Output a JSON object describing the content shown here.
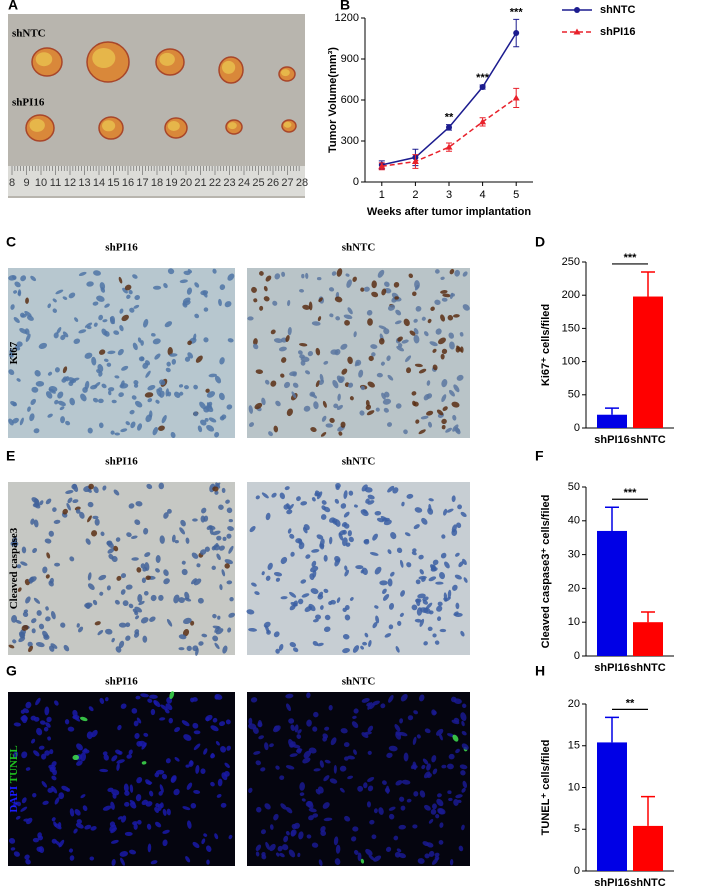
{
  "photo": {
    "panel": "A",
    "labels": [
      "shNTC",
      "shPI16"
    ],
    "ruler_labels": [
      "8",
      "9",
      "10",
      "11",
      "12",
      "13",
      "14",
      "15",
      "16",
      "17",
      "18",
      "19",
      "20",
      "21",
      "22",
      "23",
      "24",
      "25",
      "26",
      "27",
      "28"
    ]
  },
  "images": [
    {
      "panel": "C",
      "row_label": [
        {
          "text": "Ki67",
          "color": "#000000"
        }
      ],
      "labels": [
        "shPI16",
        "shNTC"
      ]
    },
    {
      "panel": "E",
      "row_label": [
        {
          "text": "Cleaved caspase3",
          "color": "#000000"
        }
      ],
      "labels": [
        "shPI16",
        "shNTC"
      ]
    },
    {
      "panel": "G",
      "row_label": [
        {
          "text": "DAPI",
          "color": "#1a1aff"
        },
        {
          "text": "TUNEL",
          "color": "#1fbf1f"
        }
      ],
      "labels": [
        "shPI16",
        "shNTC"
      ]
    }
  ],
  "chart_data": [
    {
      "type": "line",
      "panel": "B",
      "x": [
        1,
        2,
        3,
        4,
        5
      ],
      "xlim": [
        0.5,
        5.5
      ],
      "xticks": [
        1,
        2,
        3,
        4,
        5
      ],
      "ylim": [
        0,
        1200
      ],
      "yticks": [
        0,
        300,
        600,
        900,
        1200
      ],
      "x_label": "Weeks after tumor implantation",
      "y_label": "Tumor Volume(mm³)",
      "series": [
        {
          "name": "shNTC",
          "color": "#1c1c8f",
          "dash": false,
          "values": [
            125,
            180,
            400,
            695,
            1090
          ],
          "errors": [
            30,
            60,
            20,
            15,
            100
          ]
        },
        {
          "name": "shPI16",
          "color": "#e8212b",
          "dash": true,
          "values": [
            115,
            150,
            255,
            440,
            615
          ],
          "errors": [
            25,
            50,
            30,
            30,
            70
          ]
        }
      ],
      "annotations": [
        {
          "x": 3,
          "text": "**"
        },
        {
          "x": 4,
          "text": "***"
        },
        {
          "x": 5,
          "text": "***"
        }
      ],
      "legend": "top-right"
    },
    {
      "type": "bar",
      "panel": "D",
      "categories": [
        "shPI16",
        "shNTC"
      ],
      "values": [
        20,
        198
      ],
      "errors": [
        10,
        37
      ],
      "colors": [
        "#0000e6",
        "#ff0000"
      ],
      "ylim": [
        0,
        250
      ],
      "yticks": [
        0,
        50,
        100,
        150,
        200,
        250
      ],
      "y_label": "Ki67⁺ cells/filed",
      "significance": "***"
    },
    {
      "type": "bar",
      "panel": "F",
      "categories": [
        "shPI16",
        "shNTC"
      ],
      "values": [
        37,
        10
      ],
      "errors": [
        7,
        3
      ],
      "colors": [
        "#0000e6",
        "#ff0000"
      ],
      "ylim": [
        0,
        50
      ],
      "yticks": [
        0,
        10,
        20,
        30,
        40,
        50
      ],
      "y_label": "Cleaved caspase3⁺ cells/filed",
      "significance": "***"
    },
    {
      "type": "bar",
      "panel": "H",
      "categories": [
        "shPI16",
        "shNTC"
      ],
      "values": [
        15.4,
        5.4
      ],
      "errors": [
        3,
        3.5
      ],
      "colors": [
        "#0000e6",
        "#ff0000"
      ],
      "ylim": [
        0,
        20
      ],
      "yticks": [
        0,
        5,
        10,
        15,
        20
      ],
      "y_label": "TUNEL⁺ cells/filed",
      "significance": "**"
    }
  ]
}
